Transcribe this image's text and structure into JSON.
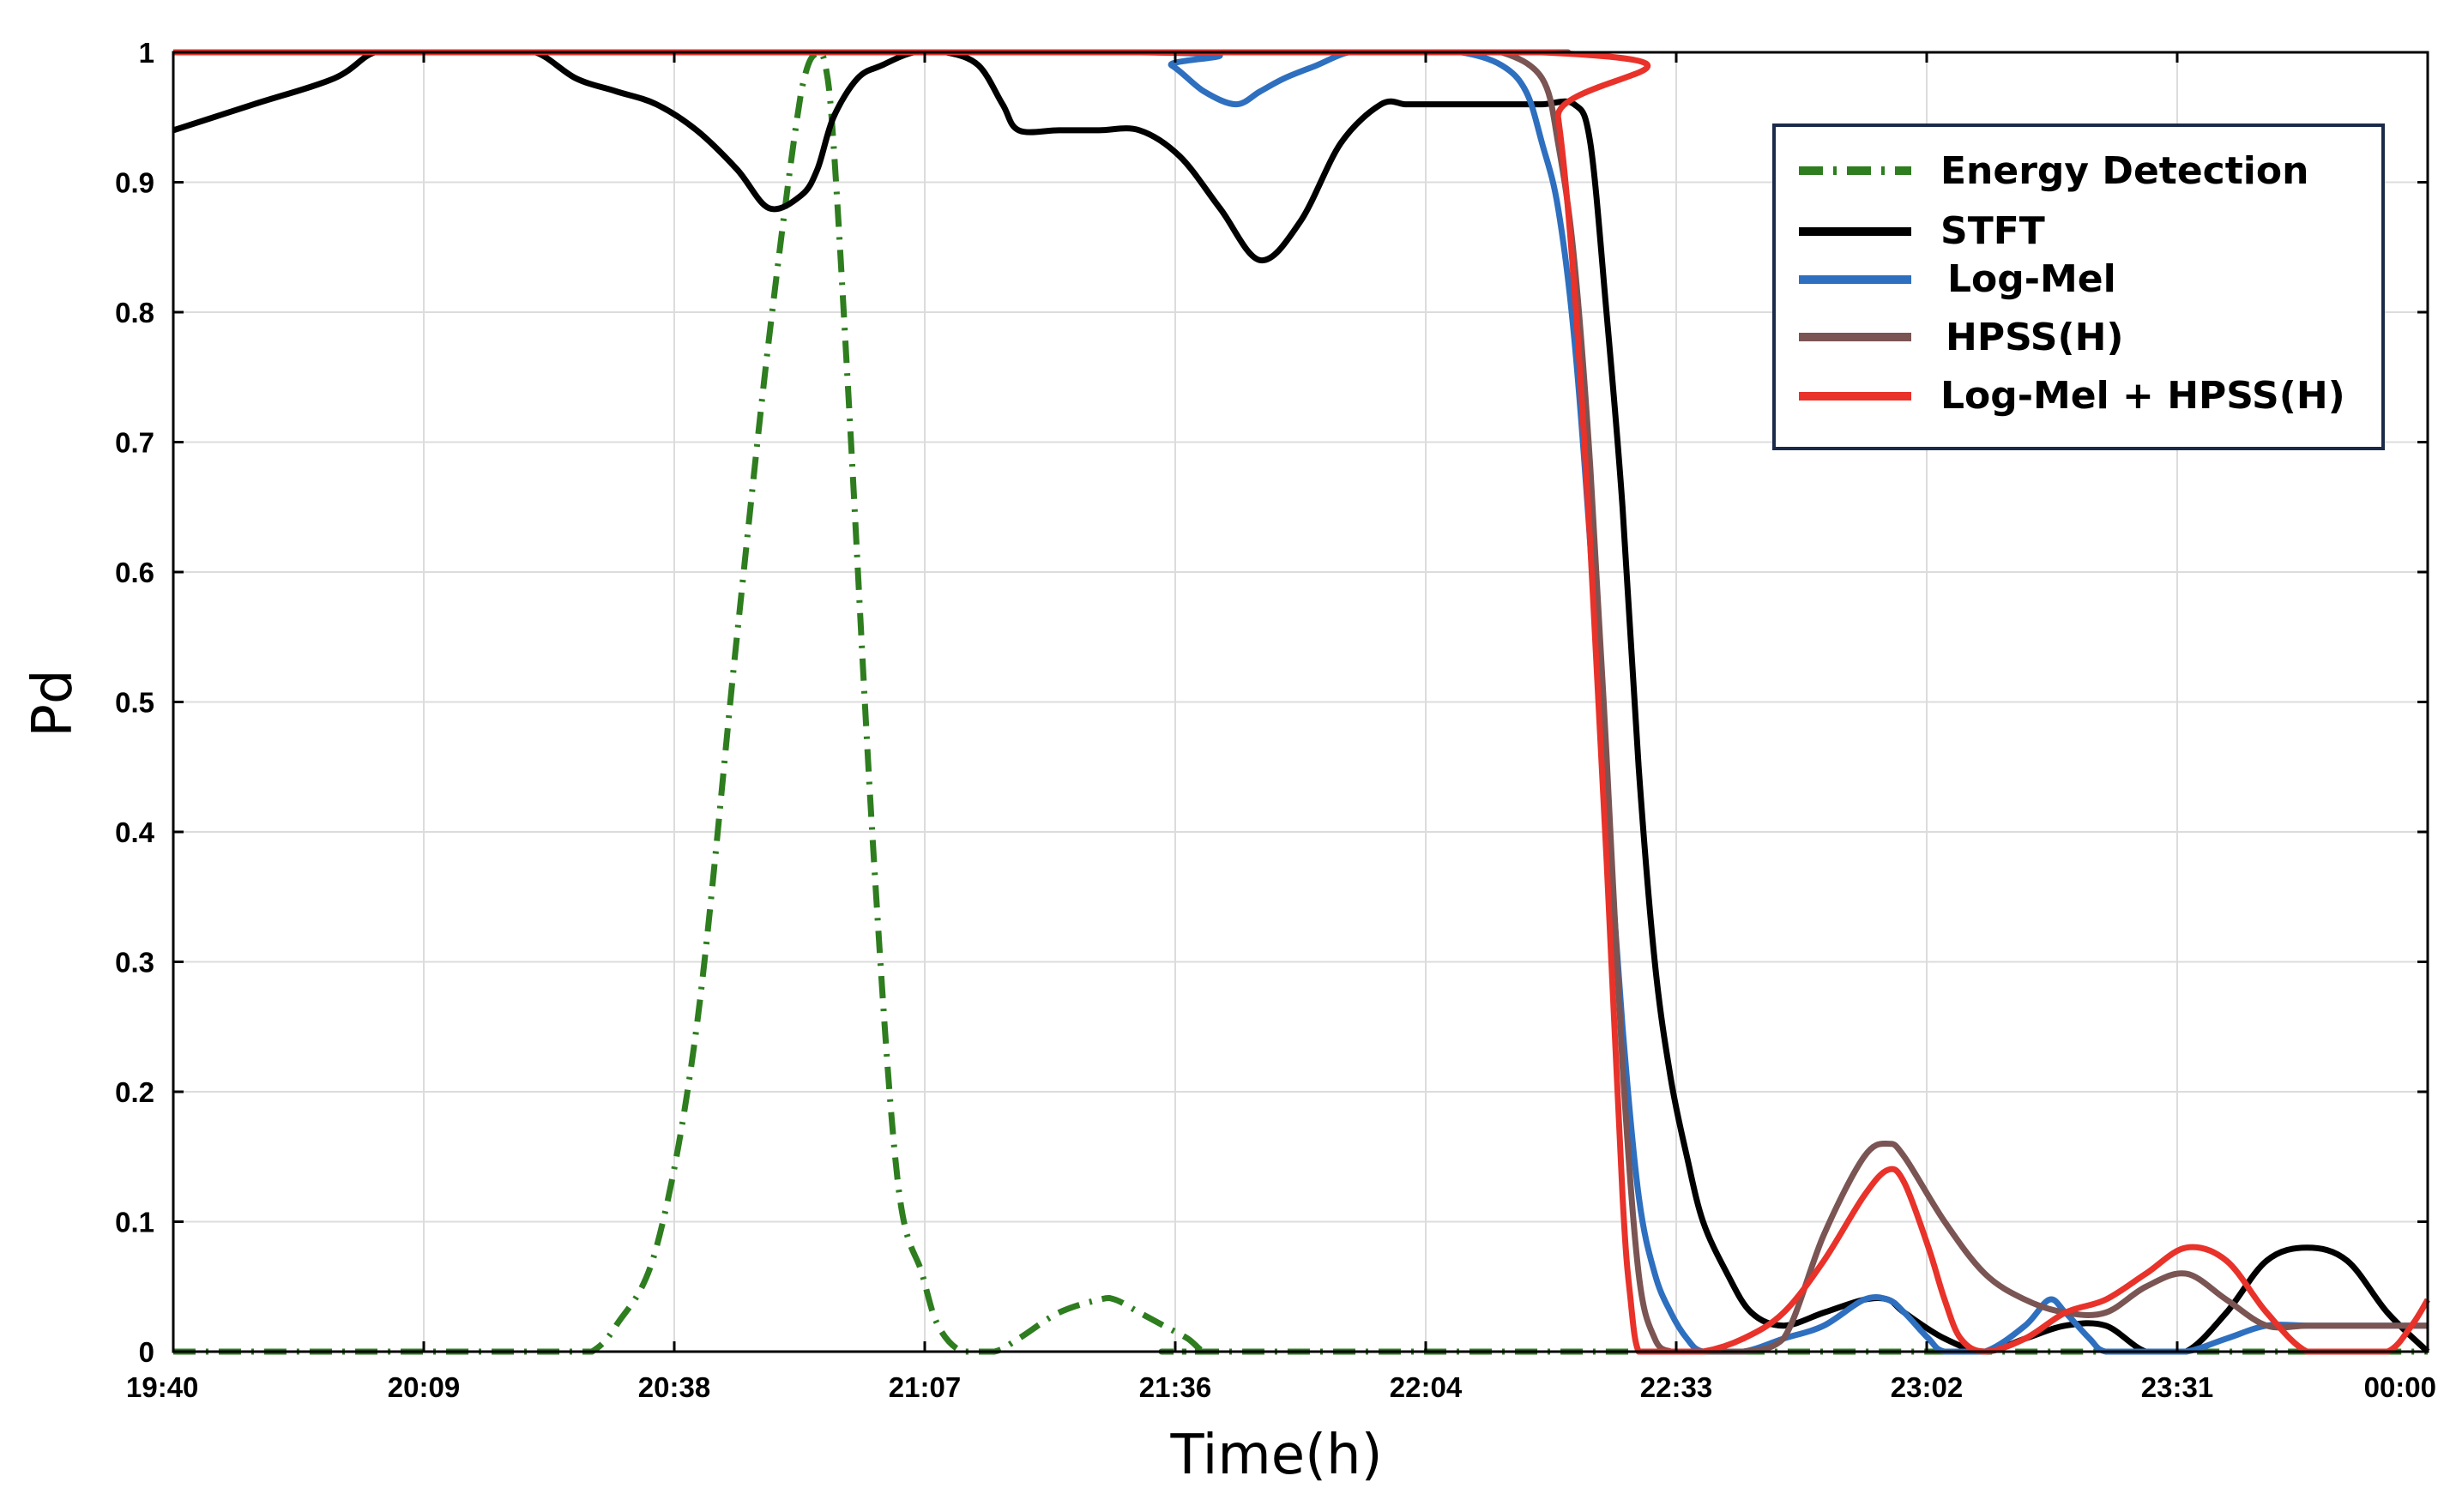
{
  "chart_data": {
    "type": "line",
    "xlabel": "Time(h)",
    "ylabel": "Pd",
    "xlim": [
      0,
      280
    ],
    "ylim": [
      0,
      1
    ],
    "x_tick_labels": [
      "19:40",
      "20:09",
      "20:38",
      "21:07",
      "21:36",
      "22:04",
      "22:33",
      "23:02",
      "23:31",
      "00:00"
    ],
    "y_tick_labels": [
      "0",
      "0.1",
      "0.2",
      "0.3",
      "0.4",
      "0.5",
      "0.6",
      "0.7",
      "0.8",
      "0.9",
      "1"
    ],
    "grid": true,
    "legend_position": "top-right",
    "series": [
      {
        "name": "Energy Detection",
        "color": "#2e7d1f",
        "style": "dash-dot",
        "x": [
          0,
          40,
          50,
          52,
          55,
          60,
          65,
          70,
          74,
          78,
          80,
          81,
          82,
          84,
          87,
          90,
          93,
          95,
          98,
          102,
          105,
          110,
          115,
          117,
          120,
          123,
          126,
          128,
          130,
          135,
          280
        ],
        "y": [
          0,
          0,
          0,
          0,
          0.02,
          0.08,
          0.25,
          0.55,
          0.78,
          0.97,
          1.0,
          0.99,
          0.93,
          0.72,
          0.38,
          0.13,
          0.06,
          0.02,
          0,
          0,
          0.01,
          0.03,
          0.04,
          0.04,
          0.03,
          0.02,
          0.01,
          0,
          0,
          0,
          0
        ]
      },
      {
        "name": "STFT",
        "color": "#000000",
        "style": "solid",
        "x": [
          0,
          10,
          20,
          25,
          30,
          35,
          40,
          45,
          50,
          55,
          60,
          65,
          70,
          74,
          78,
          80,
          82,
          85,
          88,
          92,
          96,
          100,
          103,
          105,
          110,
          115,
          120,
          125,
          130,
          135,
          140,
          145,
          150,
          153,
          155,
          160,
          165,
          170,
          174,
          176,
          178,
          180,
          182,
          184,
          186,
          188,
          190,
          193,
          196,
          200,
          205,
          210,
          213,
          215,
          220,
          225,
          230,
          235,
          240,
          245,
          250,
          255,
          260,
          265,
          270,
          275,
          280
        ],
        "y": [
          0.94,
          0.96,
          0.98,
          1.0,
          1.0,
          1.0,
          1.0,
          1.0,
          0.98,
          0.97,
          0.96,
          0.94,
          0.91,
          0.88,
          0.89,
          0.91,
          0.95,
          0.98,
          0.99,
          1.0,
          1.0,
          0.99,
          0.96,
          0.94,
          0.94,
          0.94,
          0.94,
          0.92,
          0.88,
          0.84,
          0.87,
          0.93,
          0.96,
          0.96,
          0.96,
          0.96,
          0.96,
          0.96,
          0.96,
          0.93,
          0.8,
          0.65,
          0.45,
          0.3,
          0.21,
          0.15,
          0.1,
          0.06,
          0.03,
          0.02,
          0.03,
          0.04,
          0.04,
          0.03,
          0.01,
          0.0,
          0.01,
          0.02,
          0.02,
          0.0,
          0.0,
          0.03,
          0.07,
          0.08,
          0.07,
          0.03,
          0.0
        ]
      },
      {
        "name": "Log-Mel",
        "color": "#2e6fbf",
        "style": "solid",
        "x": [
          0,
          120,
          124,
          128,
          132,
          135,
          138,
          142,
          146,
          150,
          155,
          160,
          165,
          168,
          170,
          172,
          174,
          176,
          178,
          180,
          182,
          184,
          186,
          188,
          190,
          195,
          200,
          205,
          210,
          213,
          215,
          218,
          220,
          225,
          230,
          233,
          235,
          238,
          240,
          245,
          250,
          255,
          260,
          265,
          270,
          280
        ],
        "y": [
          1.0,
          1.0,
          0.99,
          0.97,
          0.96,
          0.97,
          0.98,
          0.99,
          1.0,
          1.0,
          1.0,
          1.0,
          0.99,
          0.97,
          0.93,
          0.88,
          0.78,
          0.62,
          0.42,
          0.25,
          0.12,
          0.06,
          0.03,
          0.01,
          0.0,
          0.0,
          0.01,
          0.02,
          0.04,
          0.04,
          0.03,
          0.01,
          0.0,
          0.0,
          0.02,
          0.04,
          0.03,
          0.01,
          0.0,
          0.0,
          0.0,
          0.01,
          0.02,
          0.02,
          0.02,
          0.02
        ]
      },
      {
        "name": "HPSS(H)",
        "color": "#7a5553",
        "style": "solid",
        "x": [
          0,
          160,
          165,
          170,
          172,
          174,
          176,
          178,
          180,
          182,
          184,
          186,
          188,
          190,
          195,
          200,
          205,
          210,
          213,
          215,
          220,
          225,
          230,
          235,
          240,
          245,
          250,
          255,
          260,
          265,
          270,
          280
        ],
        "y": [
          1.0,
          1.0,
          1.0,
          0.98,
          0.93,
          0.84,
          0.68,
          0.46,
          0.22,
          0.06,
          0.01,
          0.0,
          0.0,
          0.0,
          0.0,
          0.01,
          0.09,
          0.15,
          0.16,
          0.15,
          0.1,
          0.06,
          0.04,
          0.03,
          0.03,
          0.05,
          0.06,
          0.04,
          0.02,
          0.02,
          0.02,
          0.02
        ]
      },
      {
        "name": "Log-Mel + HPSS(H)",
        "color": "#e8322a",
        "style": "solid",
        "x": [
          0,
          170,
          172,
          174,
          176,
          178,
          180,
          181,
          182,
          184,
          186,
          190,
          195,
          200,
          205,
          210,
          213,
          215,
          218,
          220,
          222,
          225,
          230,
          235,
          240,
          245,
          250,
          255,
          260,
          265,
          270,
          275,
          278,
          280
        ],
        "y": [
          1.0,
          1.0,
          0.95,
          0.82,
          0.62,
          0.38,
          0.12,
          0.04,
          0.0,
          0.0,
          0.0,
          0.0,
          0.01,
          0.03,
          0.07,
          0.12,
          0.14,
          0.13,
          0.08,
          0.04,
          0.01,
          0.0,
          0.01,
          0.03,
          0.04,
          0.06,
          0.08,
          0.07,
          0.03,
          0.0,
          0.0,
          0.0,
          0.02,
          0.04
        ]
      }
    ]
  }
}
